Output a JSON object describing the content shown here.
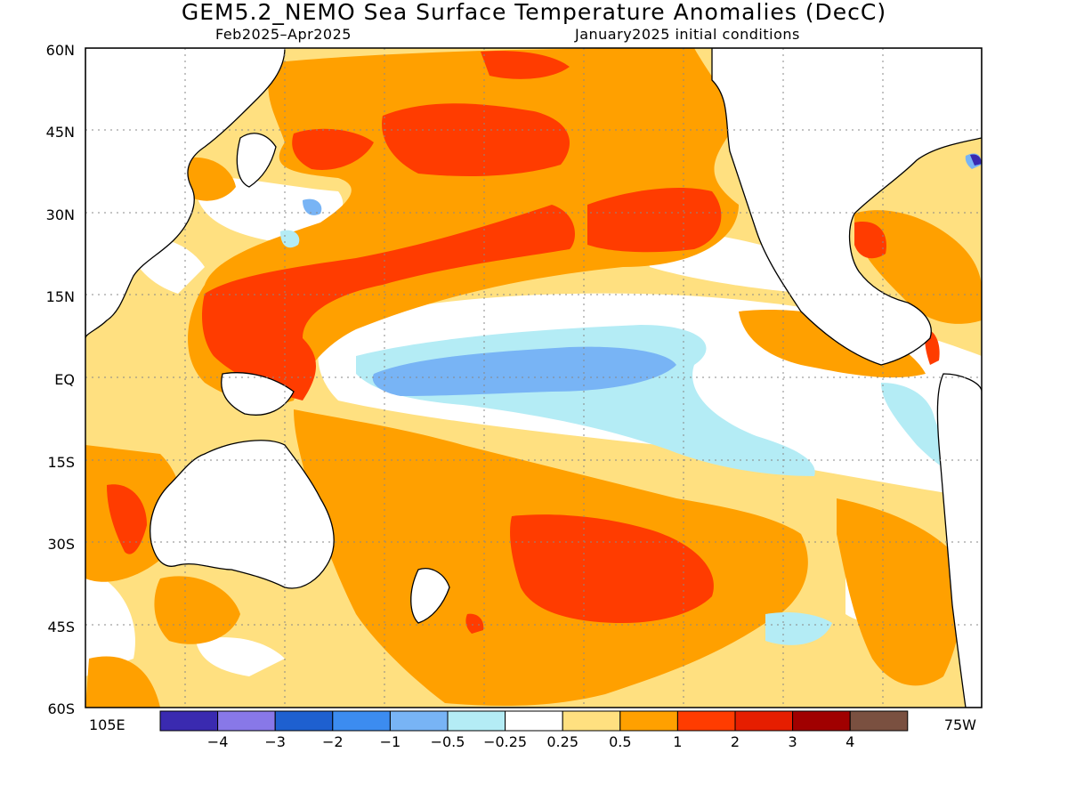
{
  "map": {
    "title": "GEM5.2_NEMO Sea Surface Temperature Anomalies (DecC)",
    "period": "Feb2025–Apr2025",
    "init": "January2025 initial conditions",
    "lat_labels": [
      "60N",
      "45N",
      "30N",
      "15N",
      "EQ",
      "15S",
      "30S",
      "45S",
      "60S"
    ],
    "lon_labels": [
      "105E",
      "75W"
    ],
    "colorbar": {
      "colors": [
        "#3a2ab0",
        "#8878e8",
        "#1e60d0",
        "#3c8cf0",
        "#78b4f5",
        "#b4ecf5",
        "#ffffff",
        "#ffe080",
        "#ffa000",
        "#ff3c00",
        "#e61e00",
        "#a00000",
        "#7a5040"
      ],
      "labels": [
        "−4",
        "−3",
        "−2",
        "−1",
        "−0.5",
        "−0.25",
        "0.25",
        "0.5",
        "1",
        "2",
        "3",
        "4"
      ]
    }
  }
}
